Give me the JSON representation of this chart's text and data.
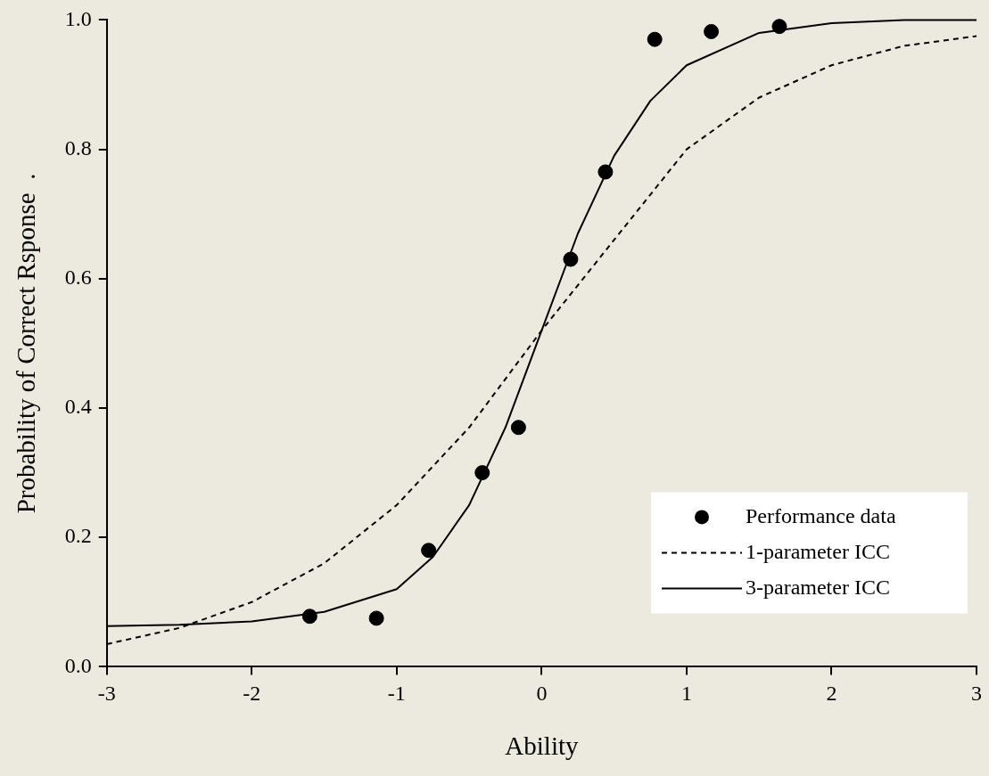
{
  "chart_data": {
    "type": "line",
    "xlabel": "Ability",
    "ylabel": "Probability of Correct Rsponse  .",
    "xlim": [
      -3,
      3
    ],
    "xticks": [
      -3,
      -2,
      -1,
      0,
      1,
      2,
      3
    ],
    "ylim": [
      0,
      1
    ],
    "yticks": [
      {
        "value": 0,
        "label": "0.0"
      },
      {
        "value": 0.2,
        "label": "0.2"
      },
      {
        "value": 0.4,
        "label": "0.4"
      },
      {
        "value": 0.6,
        "label": "0.6"
      },
      {
        "value": 0.8,
        "label": "0.8"
      },
      {
        "value": 1,
        "label": "1.0"
      }
    ],
    "grid": false,
    "legend": "bottom right",
    "series": [
      {
        "name": "Performance data",
        "type": "scatter",
        "color": "#000000",
        "marker": "circle",
        "x": [
          -1.6,
          -1.14,
          -0.78,
          -0.41,
          -0.16,
          0.2,
          0.44,
          0.78,
          1.17,
          1.64
        ],
        "values": [
          0.078,
          0.075,
          0.18,
          0.3,
          0.37,
          0.63,
          0.765,
          0.97,
          0.982,
          0.99
        ]
      },
      {
        "name": "1-parameter ICC",
        "type": "line",
        "color": "#000000",
        "marker": "none",
        "line_style": "dashed",
        "x": [
          -3,
          -2.5,
          -2,
          -1.5,
          -1,
          -0.5,
          0,
          0.5,
          1,
          1.5,
          2,
          2.5,
          3
        ],
        "values": [
          0.035,
          0.06,
          0.1,
          0.16,
          0.25,
          0.37,
          0.52,
          0.66,
          0.8,
          0.88,
          0.93,
          0.96,
          0.975
        ]
      },
      {
        "name": "3-parameter ICC",
        "type": "line",
        "color": "#000000",
        "marker": "none",
        "line_style": "solid",
        "x": [
          -3,
          -2.5,
          -2,
          -1.5,
          -1,
          -0.75,
          -0.5,
          -0.25,
          0,
          0.25,
          0.5,
          0.75,
          1,
          1.5,
          2,
          2.5,
          3
        ],
        "values": [
          0.063,
          0.065,
          0.07,
          0.085,
          0.12,
          0.17,
          0.25,
          0.37,
          0.52,
          0.67,
          0.79,
          0.875,
          0.93,
          0.98,
          0.995,
          1,
          1
        ]
      }
    ]
  }
}
